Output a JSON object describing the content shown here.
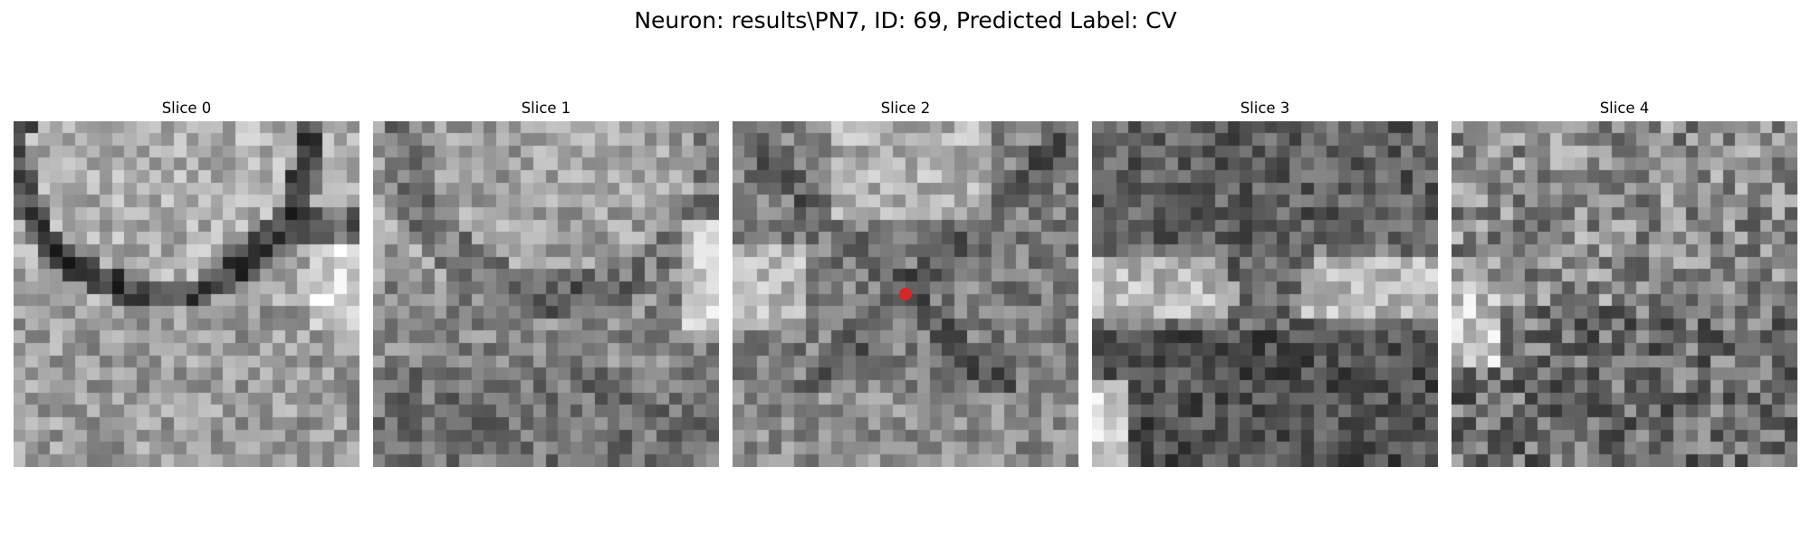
{
  "figure": {
    "suptitle": "Neuron: results\\PN7, ID: 69, Predicted Label: CV"
  },
  "slices": [
    {
      "title": "Slice 0",
      "kind": "membrane-circle"
    },
    {
      "title": "Slice 1",
      "kind": "soft-membrane"
    },
    {
      "title": "Slice 2",
      "kind": "center-x",
      "has_marker": true
    },
    {
      "title": "Slice 3",
      "kind": "dark-x"
    },
    {
      "title": "Slice 4",
      "kind": "noisy"
    }
  ],
  "marker": {
    "color": "#d62728",
    "slice_index": 2
  },
  "colormap": "grayscale"
}
